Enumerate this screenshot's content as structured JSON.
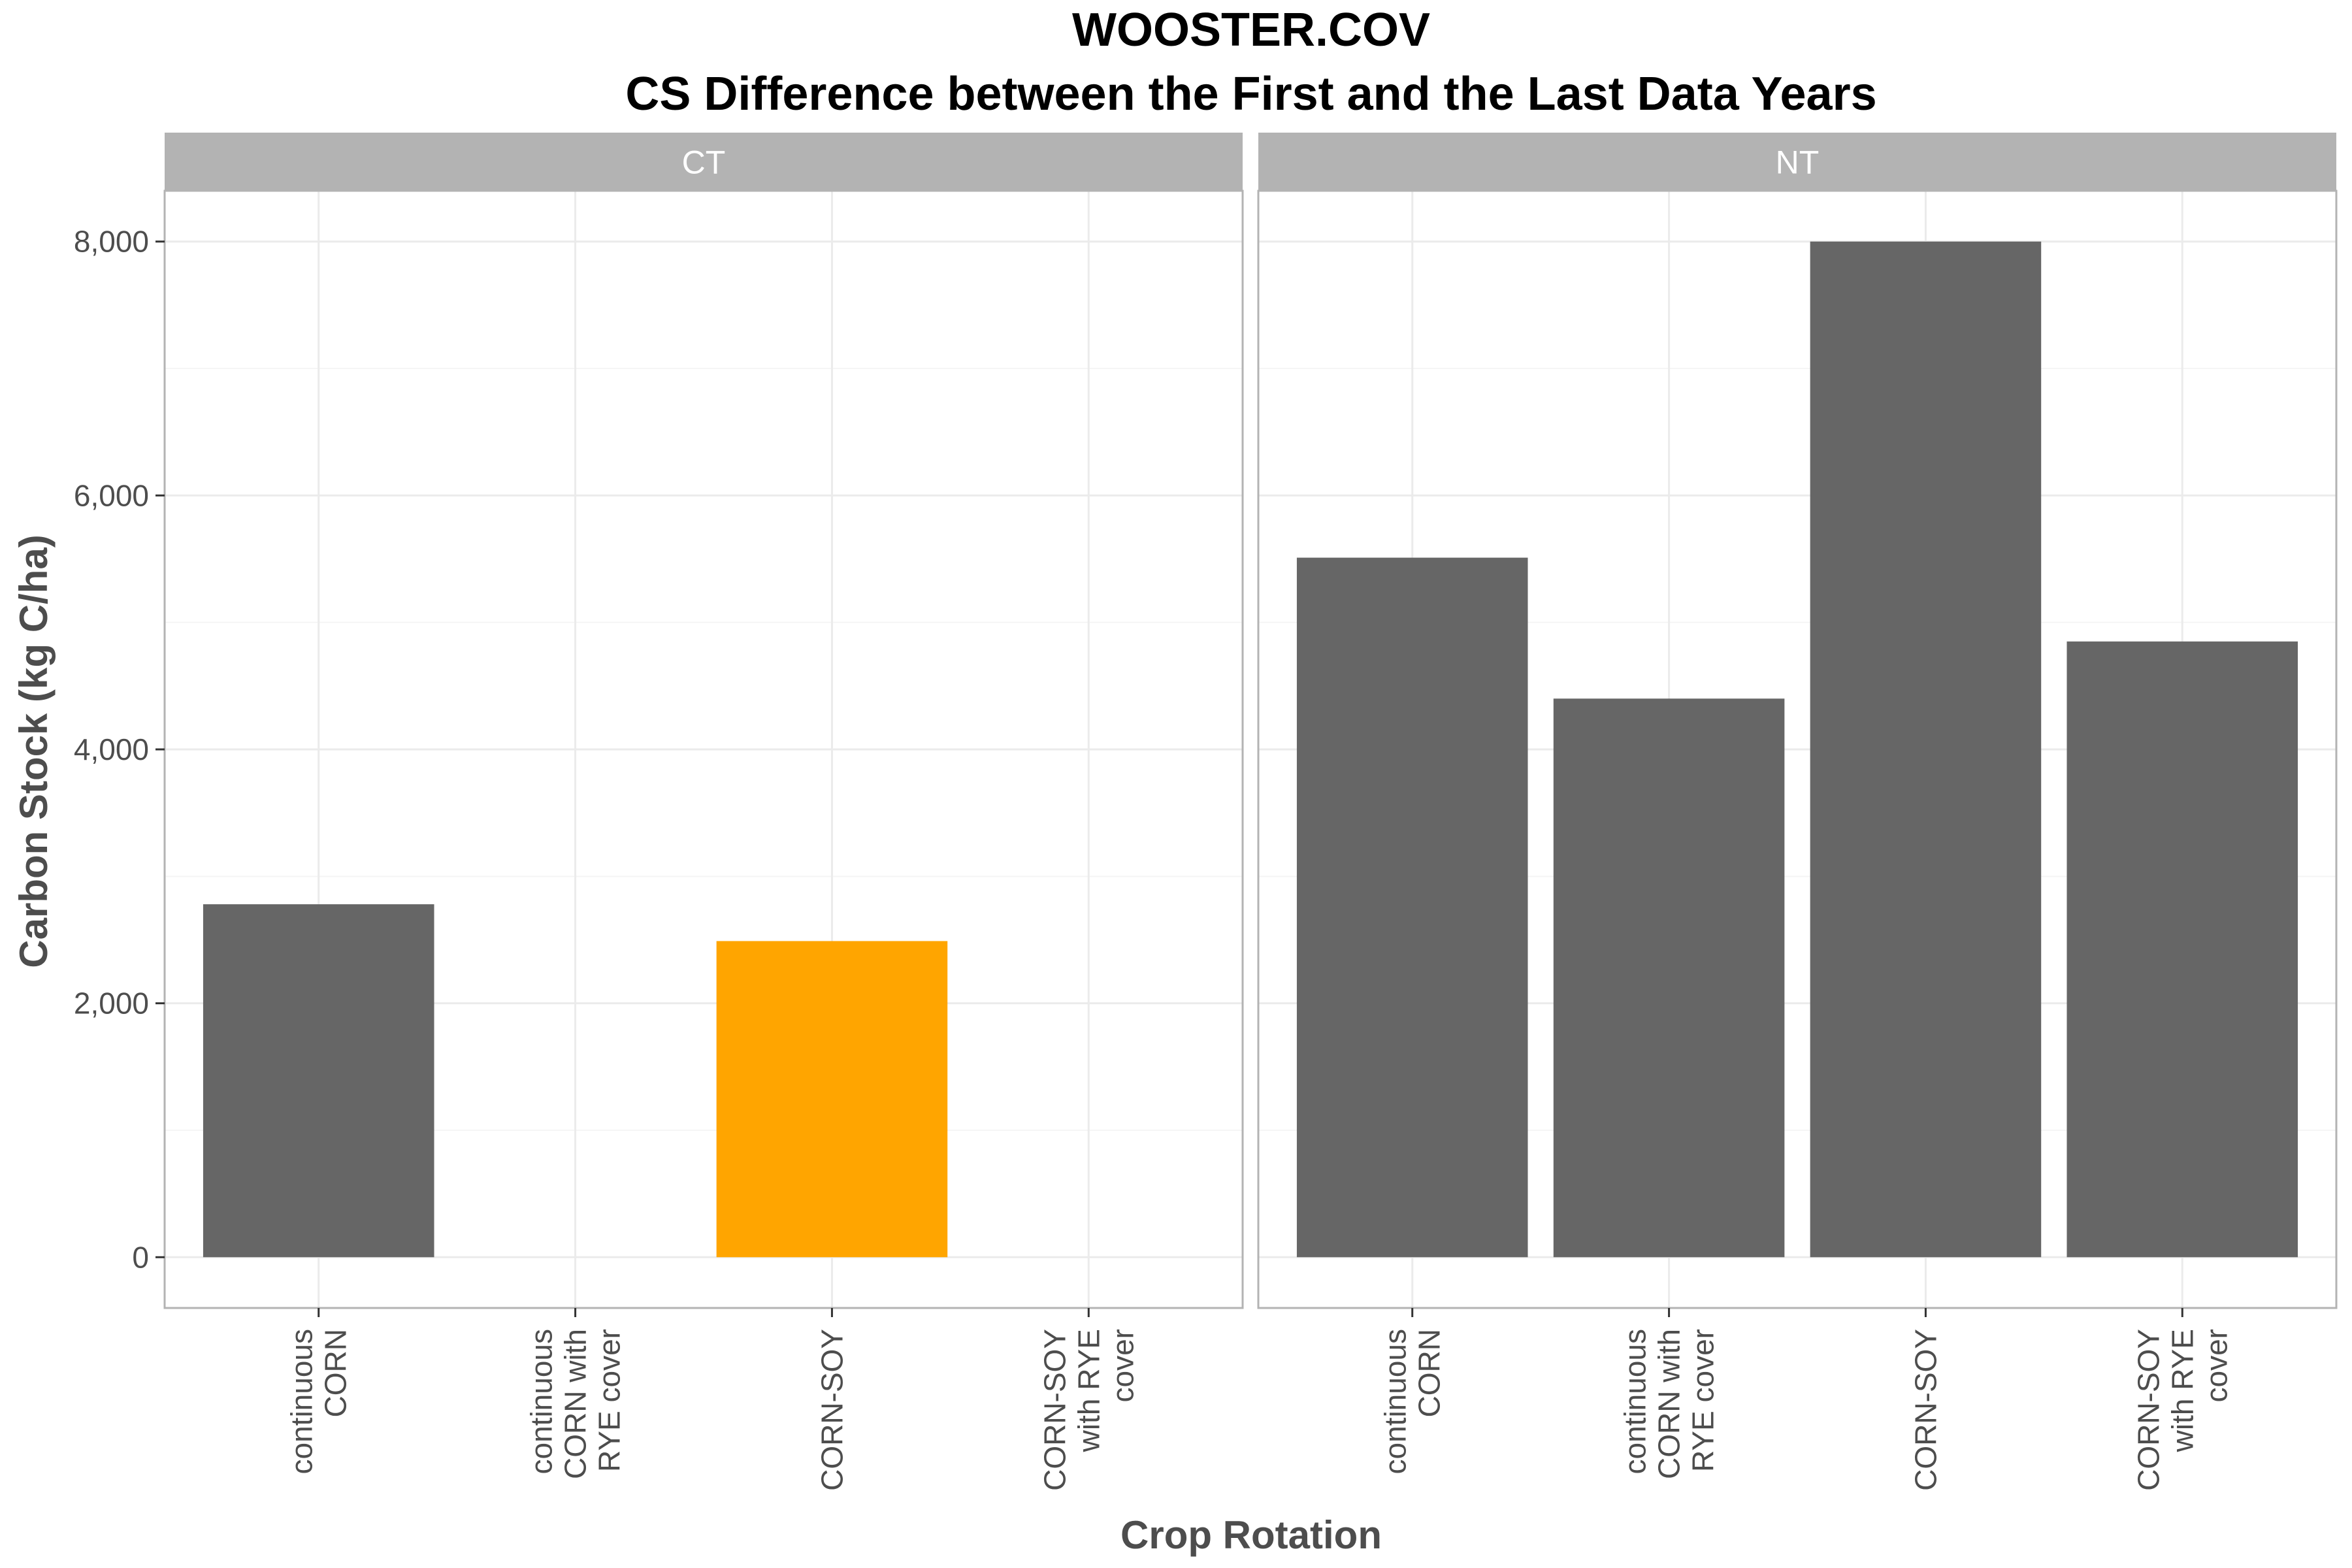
{
  "chart_data": {
    "type": "bar",
    "title": "WOOSTER.COV",
    "subtitle": "CS Difference between the First and the Last Data Years",
    "xlabel": "Crop Rotation",
    "ylabel": "Carbon Stock (kg C/ha)",
    "ylim": [
      -400,
      8400
    ],
    "y_ticks": [
      0,
      2000,
      4000,
      6000,
      8000
    ],
    "y_tick_labels": [
      "0",
      "2,000",
      "4,000",
      "6,000",
      "8,000"
    ],
    "grid": true,
    "categories": [
      [
        "continuous",
        "CORN"
      ],
      [
        "continuous",
        "CORN with",
        "RYE cover"
      ],
      [
        "CORN-SOY"
      ],
      [
        "CORN-SOY",
        "with RYE",
        "cover"
      ]
    ],
    "facets": [
      {
        "label": "CT",
        "values": [
          2780,
          null,
          2490,
          null
        ],
        "colors": [
          "#666666",
          "#666666",
          "#FFA500",
          "#666666"
        ]
      },
      {
        "label": "NT",
        "values": [
          5510,
          4400,
          8000,
          4850
        ],
        "colors": [
          "#666666",
          "#666666",
          "#666666",
          "#666666"
        ]
      }
    ],
    "colors": {
      "bar_default": "#666666",
      "bar_highlight": "#FFA500",
      "strip": "#B3B3B3",
      "grid_major": "#EBEBEB",
      "grid_minor": "#F5F5F5",
      "panel_border": "#B3B3B3"
    }
  }
}
